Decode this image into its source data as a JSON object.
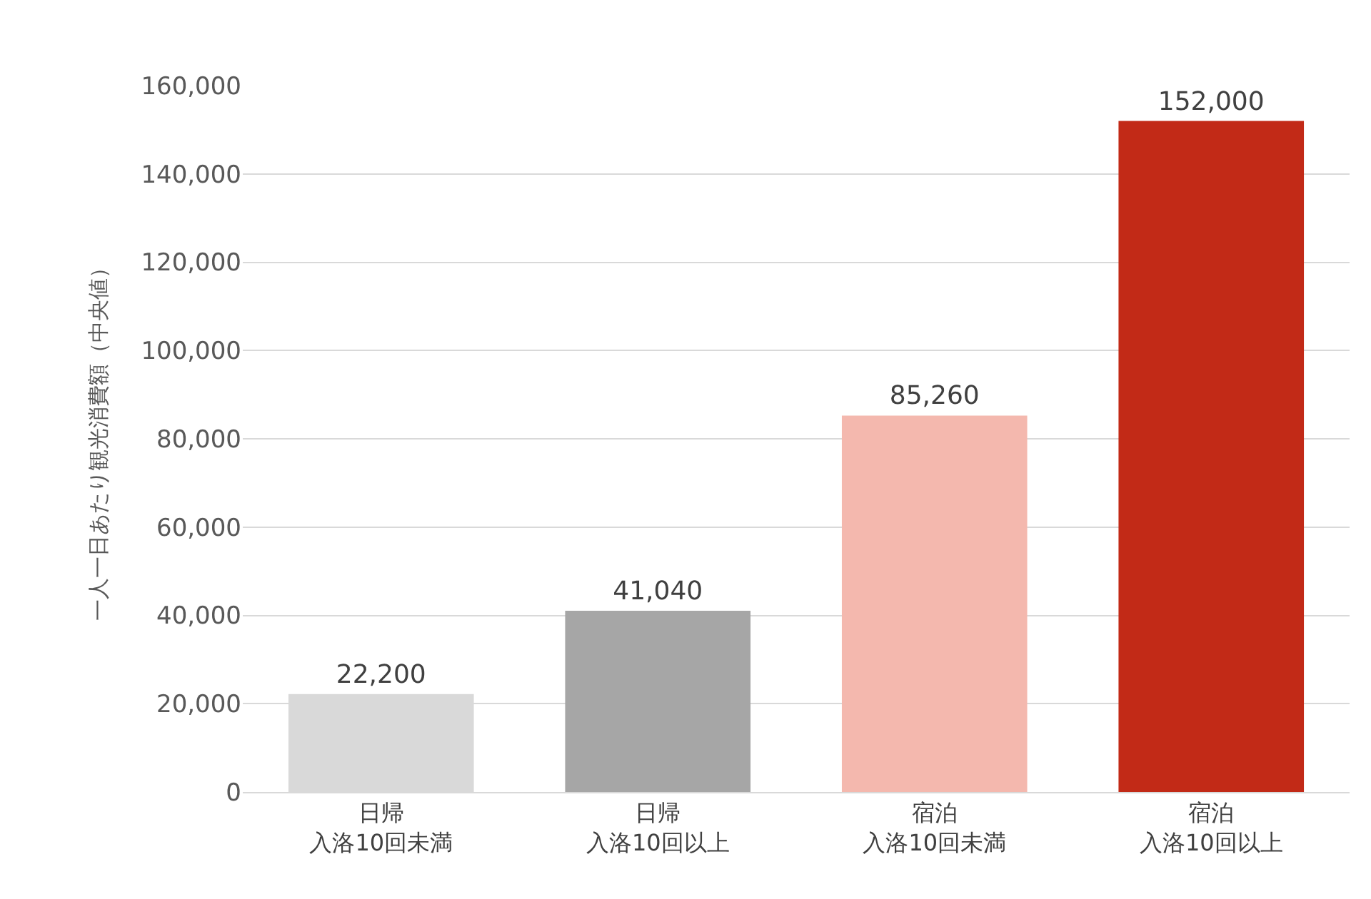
{
  "chart_data": {
    "type": "bar",
    "ylabel": "一人一日あたり観光消費額（中央値）",
    "categories": [
      "日帰入洛10回未満",
      "日帰入洛10回以上",
      "宿泊入洛10回未満",
      "宿泊入洛10回以上"
    ],
    "values": [
      22200,
      41040,
      85260,
      152000
    ],
    "value_labels": [
      "22,200",
      "41,040",
      "85,260",
      "152,000"
    ],
    "colors": [
      "#d9d9d9",
      "#a6a6a6",
      "#f4b8ae",
      "#c22a17"
    ],
    "ylim": [
      0,
      160000
    ],
    "yticks": [
      {
        "value": 0,
        "label": "0"
      },
      {
        "value": 20000,
        "label": "20,000"
      },
      {
        "value": 40000,
        "label": "40,000"
      },
      {
        "value": 60000,
        "label": "60,000"
      },
      {
        "value": 80000,
        "label": "80,000"
      },
      {
        "value": 100000,
        "label": "100,000"
      },
      {
        "value": 120000,
        "label": "120,000"
      },
      {
        "value": 140000,
        "label": "140,000"
      },
      {
        "value": 160000,
        "label": "160,000"
      }
    ],
    "grid": "y",
    "legend": false
  }
}
